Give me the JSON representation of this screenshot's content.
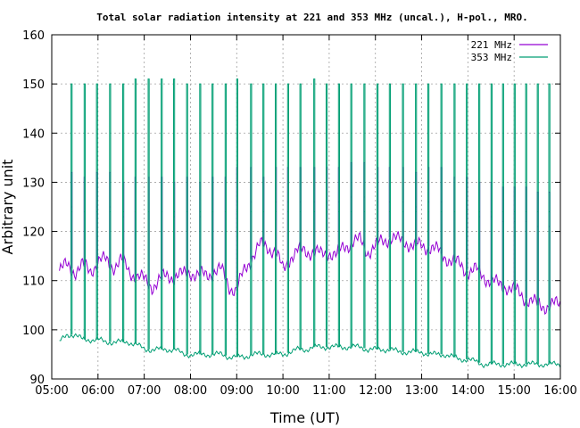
{
  "chart_data": {
    "type": "line",
    "title": "Total solar radiation intensity at 221 and 353 MHz (uncal.), H-pol., MRO.",
    "xlabel": "Time (UT)",
    "ylabel": "Arbitrary unit",
    "xlim": [
      "05:00",
      "16:00"
    ],
    "ylim": [
      90,
      160
    ],
    "x_ticks": [
      "05:00",
      "06:00",
      "07:00",
      "08:00",
      "09:00",
      "10:00",
      "11:00",
      "12:00",
      "13:00",
      "14:00",
      "15:00",
      "16:00"
    ],
    "y_ticks": [
      90,
      100,
      110,
      120,
      130,
      140,
      150,
      160
    ],
    "grid": true,
    "legend_position": "top-right",
    "series": [
      {
        "name": "221 MHz",
        "color": "#9400d3",
        "x": [
          "05:10",
          "05:20",
          "05:30",
          "05:40",
          "05:50",
          "06:00",
          "06:10",
          "06:20",
          "06:30",
          "06:40",
          "06:50",
          "07:00",
          "07:10",
          "07:20",
          "07:30",
          "07:40",
          "07:50",
          "08:00",
          "08:10",
          "08:20",
          "08:30",
          "08:40",
          "08:50",
          "09:00",
          "09:10",
          "09:20",
          "09:30",
          "09:40",
          "09:50",
          "10:00",
          "10:10",
          "10:20",
          "10:30",
          "10:40",
          "10:50",
          "11:00",
          "11:10",
          "11:20",
          "11:30",
          "11:40",
          "11:50",
          "12:00",
          "12:10",
          "12:20",
          "12:30",
          "12:40",
          "12:50",
          "13:00",
          "13:10",
          "13:20",
          "13:30",
          "13:40",
          "13:50",
          "14:00",
          "14:10",
          "14:20",
          "14:30",
          "14:40",
          "14:50",
          "15:00",
          "15:10",
          "15:20",
          "15:30",
          "15:40",
          "15:50",
          "16:00"
        ],
        "values": [
          112,
          113,
          112,
          113,
          112,
          114,
          114,
          113,
          114,
          112,
          111,
          110,
          109,
          110,
          111,
          111,
          111,
          112,
          111,
          111,
          112,
          112,
          109,
          108,
          112,
          115,
          117,
          117,
          116,
          112,
          115,
          116,
          116,
          116,
          115,
          116,
          115,
          117,
          118,
          118,
          116,
          117,
          118,
          119,
          118,
          118,
          117,
          117,
          117,
          116,
          115,
          114,
          113,
          112,
          112,
          111,
          110,
          109,
          109,
          108,
          107,
          106,
          105,
          105,
          105,
          105
        ],
        "spikes": [
          {
            "t": "05:25",
            "peak": 132
          },
          {
            "t": "05:42",
            "peak": 131
          },
          {
            "t": "05:58",
            "peak": 132
          },
          {
            "t": "06:15",
            "peak": 132
          },
          {
            "t": "06:32",
            "peak": 130
          },
          {
            "t": "06:48",
            "peak": 131
          },
          {
            "t": "07:05",
            "peak": 131
          },
          {
            "t": "07:22",
            "peak": 131
          },
          {
            "t": "07:38",
            "peak": 130
          },
          {
            "t": "07:55",
            "peak": 131
          },
          {
            "t": "08:12",
            "peak": 130
          },
          {
            "t": "08:28",
            "peak": 131
          },
          {
            "t": "08:45",
            "peak": 131
          },
          {
            "t": "09:00",
            "peak": 133
          },
          {
            "t": "09:18",
            "peak": 133
          },
          {
            "t": "09:34",
            "peak": 131
          },
          {
            "t": "09:50",
            "peak": 133
          },
          {
            "t": "10:06",
            "peak": 133
          },
          {
            "t": "10:22",
            "peak": 133
          },
          {
            "t": "10:40",
            "peak": 133
          },
          {
            "t": "10:56",
            "peak": 133
          },
          {
            "t": "11:12",
            "peak": 133
          },
          {
            "t": "11:28",
            "peak": 134
          },
          {
            "t": "11:45",
            "peak": 134
          },
          {
            "t": "12:02",
            "peak": 133
          },
          {
            "t": "12:18",
            "peak": 133
          },
          {
            "t": "12:35",
            "peak": 133
          },
          {
            "t": "12:52",
            "peak": 132
          },
          {
            "t": "13:08",
            "peak": 133
          },
          {
            "t": "13:25",
            "peak": 133
          },
          {
            "t": "13:42",
            "peak": 131
          },
          {
            "t": "13:58",
            "peak": 131
          },
          {
            "t": "14:14",
            "peak": 130
          },
          {
            "t": "14:30",
            "peak": 130
          },
          {
            "t": "14:45",
            "peak": 129
          },
          {
            "t": "15:00",
            "peak": 129
          },
          {
            "t": "15:15",
            "peak": 129
          },
          {
            "t": "15:30",
            "peak": 128
          },
          {
            "t": "15:45",
            "peak": 128
          }
        ]
      },
      {
        "name": "353 MHz",
        "color": "#009e73",
        "x": [
          "05:10",
          "05:20",
          "05:30",
          "05:40",
          "05:50",
          "06:00",
          "06:10",
          "06:20",
          "06:30",
          "06:40",
          "06:50",
          "07:00",
          "07:10",
          "07:20",
          "07:30",
          "07:40",
          "07:50",
          "08:00",
          "08:10",
          "08:20",
          "08:30",
          "08:40",
          "08:50",
          "09:00",
          "09:10",
          "09:20",
          "09:30",
          "09:40",
          "09:50",
          "10:00",
          "10:10",
          "10:20",
          "10:30",
          "10:40",
          "10:50",
          "11:00",
          "11:10",
          "11:20",
          "11:30",
          "11:40",
          "11:50",
          "12:00",
          "12:10",
          "12:20",
          "12:30",
          "12:40",
          "12:50",
          "13:00",
          "13:10",
          "13:20",
          "13:30",
          "13:40",
          "13:50",
          "14:00",
          "14:10",
          "14:20",
          "14:30",
          "14:40",
          "14:50",
          "15:00",
          "15:10",
          "15:20",
          "15:30",
          "15:40",
          "15:50",
          "16:00"
        ],
        "values": [
          97.5,
          99,
          99,
          98,
          98,
          98,
          97.5,
          97.5,
          97.5,
          97.5,
          97,
          96,
          96,
          96,
          96,
          96,
          95,
          95,
          95,
          95,
          95,
          95,
          94.5,
          94.5,
          94.5,
          95,
          95,
          95,
          95,
          95,
          95.5,
          96,
          96,
          96.5,
          96.5,
          96.5,
          96.5,
          96.5,
          96.5,
          96.5,
          96,
          96,
          96,
          96,
          95.5,
          95.5,
          95.5,
          95.5,
          95,
          95,
          95,
          94.5,
          94,
          94,
          93.5,
          93,
          93,
          93,
          93,
          93,
          93,
          93,
          93,
          93,
          93,
          93
        ],
        "spikes": [
          {
            "t": "05:25",
            "peak": 150
          },
          {
            "t": "05:42",
            "peak": 150
          },
          {
            "t": "05:58",
            "peak": 150
          },
          {
            "t": "06:15",
            "peak": 150
          },
          {
            "t": "06:32",
            "peak": 150
          },
          {
            "t": "06:48",
            "peak": 151
          },
          {
            "t": "07:05",
            "peak": 151
          },
          {
            "t": "07:22",
            "peak": 151
          },
          {
            "t": "07:38",
            "peak": 151
          },
          {
            "t": "07:55",
            "peak": 150
          },
          {
            "t": "08:12",
            "peak": 150
          },
          {
            "t": "08:28",
            "peak": 150
          },
          {
            "t": "08:45",
            "peak": 150
          },
          {
            "t": "09:00",
            "peak": 151
          },
          {
            "t": "09:18",
            "peak": 150
          },
          {
            "t": "09:34",
            "peak": 150
          },
          {
            "t": "09:50",
            "peak": 150
          },
          {
            "t": "10:06",
            "peak": 150
          },
          {
            "t": "10:22",
            "peak": 150
          },
          {
            "t": "10:40",
            "peak": 151
          },
          {
            "t": "10:56",
            "peak": 150
          },
          {
            "t": "11:12",
            "peak": 150
          },
          {
            "t": "11:28",
            "peak": 150
          },
          {
            "t": "11:45",
            "peak": 150
          },
          {
            "t": "12:02",
            "peak": 150
          },
          {
            "t": "12:18",
            "peak": 150
          },
          {
            "t": "12:35",
            "peak": 150
          },
          {
            "t": "12:52",
            "peak": 150
          },
          {
            "t": "13:08",
            "peak": 150
          },
          {
            "t": "13:25",
            "peak": 150
          },
          {
            "t": "13:42",
            "peak": 150
          },
          {
            "t": "13:58",
            "peak": 150
          },
          {
            "t": "14:14",
            "peak": 150
          },
          {
            "t": "14:30",
            "peak": 150
          },
          {
            "t": "14:45",
            "peak": 150
          },
          {
            "t": "15:00",
            "peak": 150
          },
          {
            "t": "15:15",
            "peak": 150
          },
          {
            "t": "15:30",
            "peak": 150
          },
          {
            "t": "15:45",
            "peak": 150
          }
        ]
      }
    ]
  }
}
